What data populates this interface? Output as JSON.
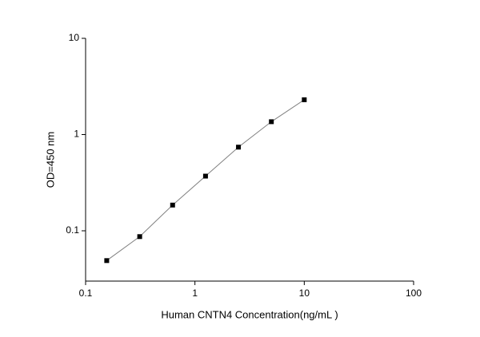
{
  "chart_data": {
    "type": "scatter",
    "x_label": "Human CNTN4 Concentration(ng/mL )",
    "y_label": "OD=450 nm",
    "x": [
      0.156,
      0.3125,
      0.625,
      1.25,
      2.5,
      5,
      10
    ],
    "values": [
      0.049,
      0.087,
      0.185,
      0.37,
      0.74,
      1.36,
      2.3
    ],
    "color": "#000000",
    "line_color": "#808080",
    "xlog": true,
    "ylog": true,
    "xlim": [
      0.1,
      100
    ],
    "ylim": [
      0.03,
      10
    ],
    "xticks": [
      0.1,
      1,
      10,
      100
    ],
    "yticks": [
      0.1,
      1,
      10
    ]
  }
}
